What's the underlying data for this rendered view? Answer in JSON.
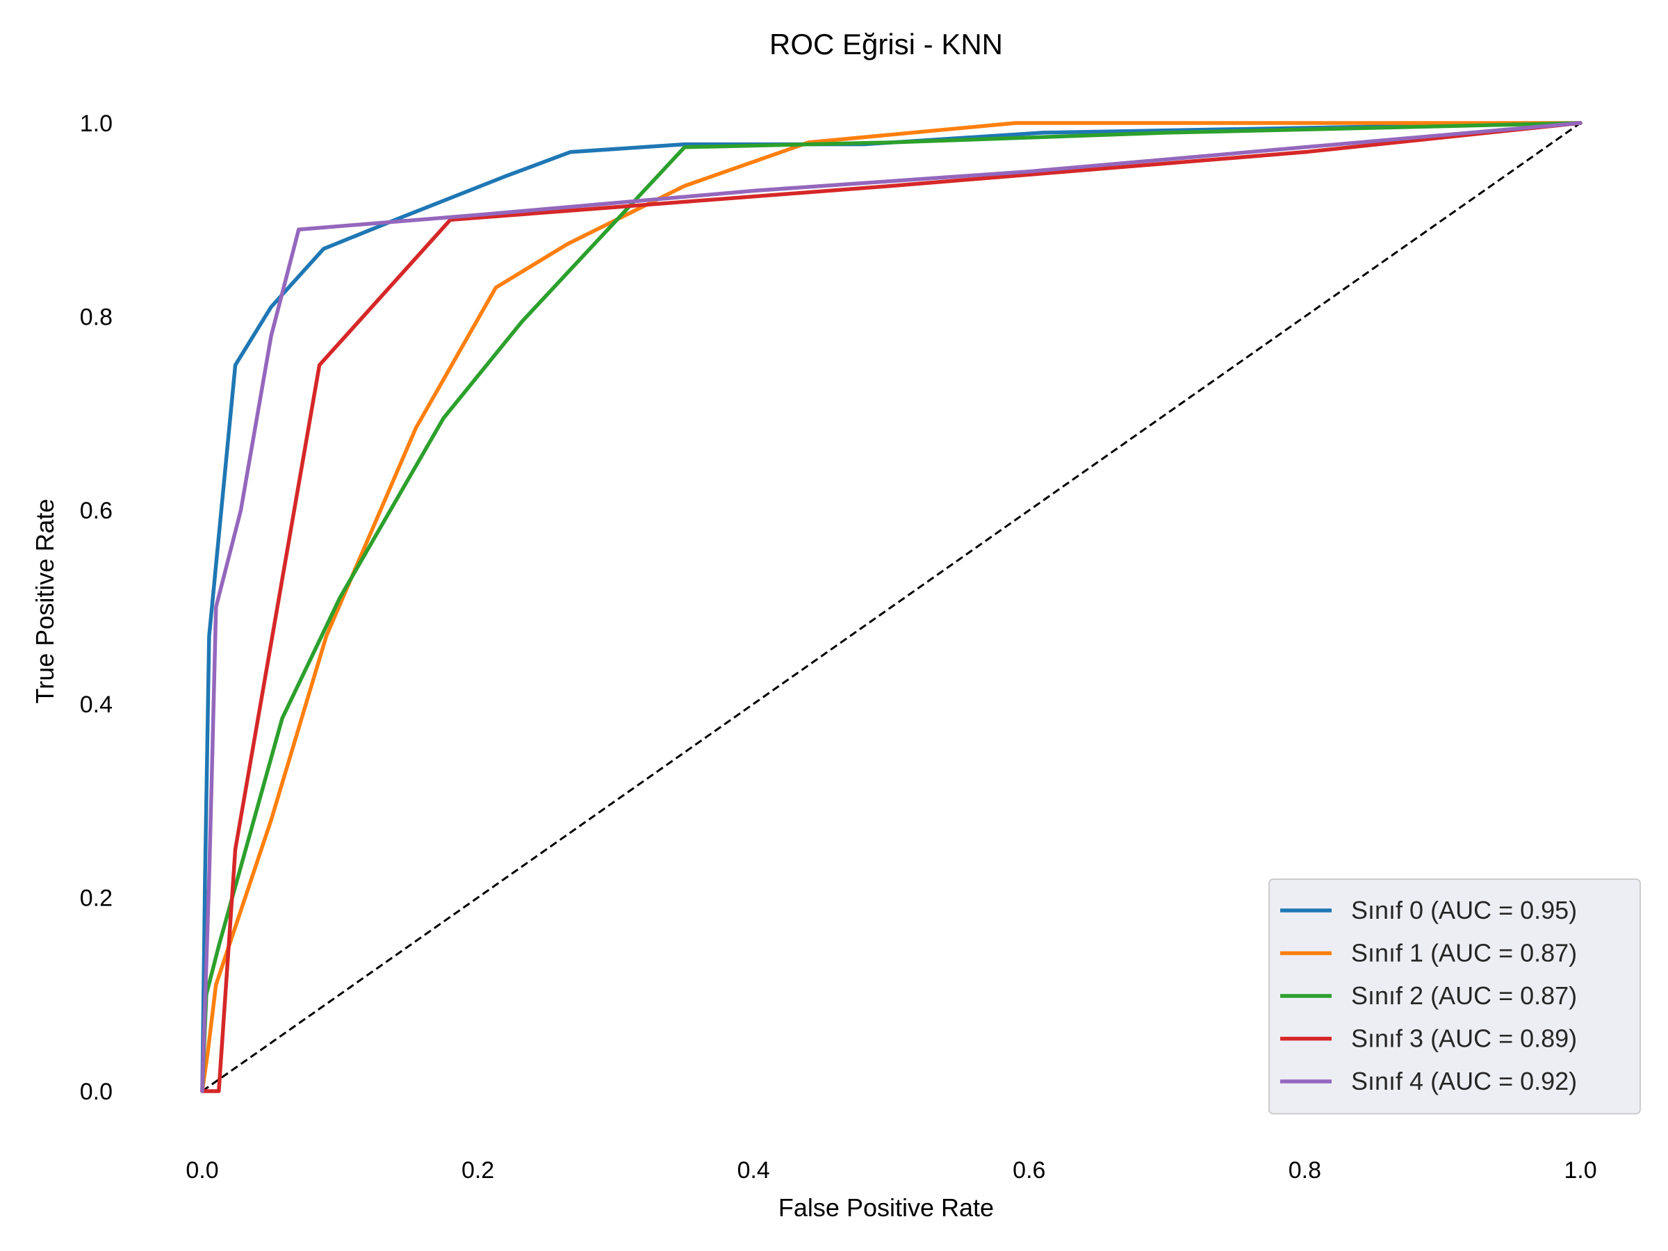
{
  "chart_data": {
    "type": "line",
    "title": "ROC Eğrisi - KNN",
    "xlabel": "False Positive Rate",
    "ylabel": "True Positive Rate",
    "xlim": [
      0.0,
      1.0
    ],
    "ylim": [
      0.0,
      1.0
    ],
    "xticks": [
      "0.0",
      "0.2",
      "0.4",
      "0.6",
      "0.8",
      "1.0"
    ],
    "yticks": [
      "0.0",
      "0.2",
      "0.4",
      "0.6",
      "0.8",
      "1.0"
    ],
    "grid": false,
    "legend_position": "lower-right",
    "diagonal": {
      "x": [
        0,
        1
      ],
      "y": [
        0,
        1
      ],
      "color": "#000000",
      "style": "dashed"
    },
    "series": [
      {
        "name": "Sınıf 0 (AUC = 0.95)",
        "color": "#1f77b4",
        "x": [
          0.0,
          0.002,
          0.005,
          0.024,
          0.05,
          0.088,
          0.14,
          0.22,
          0.267,
          0.35,
          0.48,
          0.61,
          0.8,
          1.0
        ],
        "y": [
          0.0,
          0.22,
          0.47,
          0.75,
          0.81,
          0.87,
          0.9,
          0.945,
          0.97,
          0.978,
          0.978,
          0.99,
          0.995,
          1.0
        ]
      },
      {
        "name": "Sınıf 1 (AUC = 0.87)",
        "color": "#ff7f0e",
        "x": [
          0.0,
          0.004,
          0.01,
          0.05,
          0.09,
          0.155,
          0.213,
          0.265,
          0.35,
          0.44,
          0.59,
          0.8,
          1.0
        ],
        "y": [
          0.0,
          0.04,
          0.11,
          0.28,
          0.47,
          0.685,
          0.83,
          0.875,
          0.935,
          0.98,
          1.0,
          1.0,
          1.0
        ]
      },
      {
        "name": "Sınıf 2 (AUC = 0.87)",
        "color": "#2ca02c",
        "x": [
          0.0,
          0.003,
          0.012,
          0.058,
          0.1,
          0.175,
          0.232,
          0.35,
          0.5,
          0.7,
          1.0
        ],
        "y": [
          0.0,
          0.1,
          0.15,
          0.385,
          0.51,
          0.695,
          0.795,
          0.975,
          0.98,
          0.99,
          1.0
        ]
      },
      {
        "name": "Sınıf 3 (AUC = 0.89)",
        "color": "#d62728",
        "x": [
          0.0,
          0.012,
          0.024,
          0.085,
          0.18,
          0.5,
          0.8,
          1.0
        ],
        "y": [
          0.0,
          0.0,
          0.25,
          0.75,
          0.9,
          0.935,
          0.97,
          1.0
        ]
      },
      {
        "name": "Sınıf 4 (AUC = 0.92)",
        "color": "#9467bd",
        "x": [
          0.0,
          0.005,
          0.007,
          0.01,
          0.028,
          0.05,
          0.07,
          0.2,
          0.4,
          0.6,
          0.8,
          1.0
        ],
        "y": [
          0.0,
          0.22,
          0.33,
          0.5,
          0.6,
          0.78,
          0.89,
          0.905,
          0.93,
          0.95,
          0.975,
          1.0
        ]
      }
    ]
  }
}
